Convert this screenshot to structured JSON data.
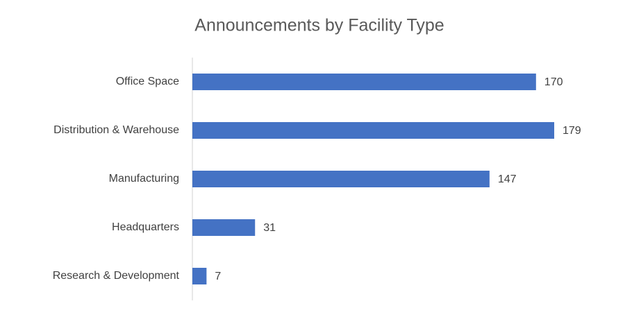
{
  "chart_data": {
    "type": "bar",
    "title": "Announcements by Facility Type",
    "categories": [
      "Office Space",
      "Distribution & Warehouse",
      "Manufacturing",
      "Headquarters",
      "Research & Development"
    ],
    "values": [
      170,
      179,
      147,
      31,
      7
    ],
    "color": "#4472c4"
  }
}
